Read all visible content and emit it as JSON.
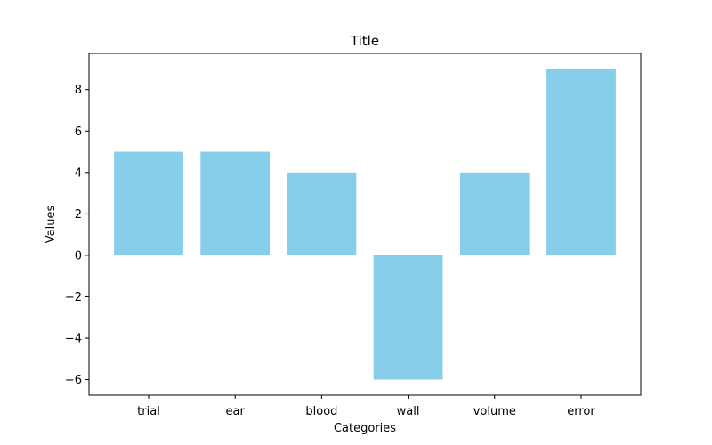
{
  "chart_data": {
    "type": "bar",
    "title": "Title",
    "xlabel": "Categories",
    "ylabel": "Values",
    "categories": [
      "trial",
      "ear",
      "blood",
      "wall",
      "volume",
      "error"
    ],
    "values": [
      5,
      5,
      4,
      -6,
      4,
      9
    ],
    "ylim": [
      -6.75,
      9.75
    ],
    "yticks": [
      -6,
      -4,
      -2,
      0,
      2,
      4,
      6,
      8
    ],
    "bar_color": "#87CEEB",
    "grid": false,
    "legend": "none"
  }
}
